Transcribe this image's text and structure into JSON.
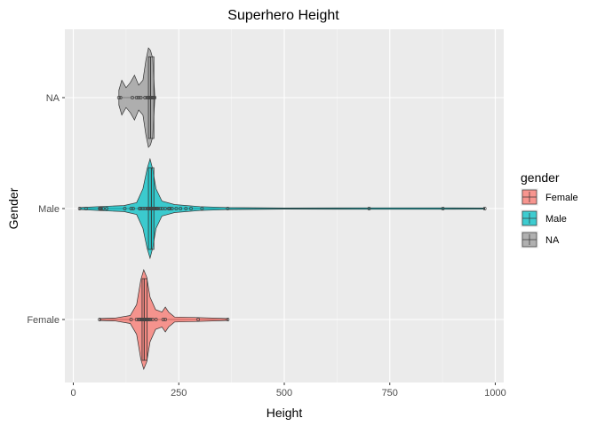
{
  "chart_data": {
    "type": "violin",
    "title": "Superhero Height",
    "xlabel": "Height",
    "ylabel": "Gender",
    "xlim": [
      -20,
      1020
    ],
    "x_ticks": [
      0,
      250,
      500,
      750,
      1000
    ],
    "categories": [
      "NA",
      "Male",
      "Female"
    ],
    "grid": true,
    "legend": {
      "title": "gender",
      "position": "right",
      "items": [
        {
          "label": "Female",
          "color": "#F8766D"
        },
        {
          "label": "Male",
          "color": "#00BFC4"
        },
        {
          "label": "NA",
          "color": "#999999"
        }
      ]
    },
    "series": [
      {
        "name": "NA",
        "color": "#999999",
        "box": {
          "min": 108,
          "q1": 178,
          "median": 183,
          "q3": 191,
          "max": 193
        },
        "violin": [
          [
            108,
            0.15
          ],
          [
            115,
            0.35
          ],
          [
            125,
            0.2
          ],
          [
            135,
            0.3
          ],
          [
            145,
            0.45
          ],
          [
            155,
            0.25
          ],
          [
            165,
            0.35
          ],
          [
            172,
            0.75
          ],
          [
            178,
            1.0
          ],
          [
            183,
            0.95
          ],
          [
            188,
            0.8
          ],
          [
            193,
            0.05
          ]
        ],
        "points": [
          108,
          112,
          140,
          150,
          155,
          160,
          170,
          175,
          178,
          180,
          183,
          185,
          188,
          191,
          193
        ]
      },
      {
        "name": "Male",
        "color": "#00BFC4",
        "box": {
          "min": 15.2,
          "q1": 178,
          "median": 185,
          "q3": 191,
          "max": 975
        },
        "violin": [
          [
            15.2,
            0.02
          ],
          [
            60,
            0.04
          ],
          [
            120,
            0.06
          ],
          [
            150,
            0.12
          ],
          [
            165,
            0.4
          ],
          [
            175,
            0.8
          ],
          [
            182,
            1.0
          ],
          [
            188,
            0.8
          ],
          [
            196,
            0.4
          ],
          [
            210,
            0.15
          ],
          [
            240,
            0.08
          ],
          [
            300,
            0.04
          ],
          [
            370,
            0.02
          ],
          [
            500,
            0.01
          ],
          [
            700,
            0.015
          ],
          [
            880,
            0.015
          ],
          [
            975,
            0.01
          ]
        ],
        "points": [
          15.2,
          30,
          62.5,
          64,
          66,
          71,
          79,
          122,
          137,
          142,
          157,
          160,
          165,
          170,
          175,
          178,
          180,
          183,
          185,
          188,
          191,
          193,
          196,
          198,
          201,
          206,
          211,
          218,
          226,
          229,
          234,
          244,
          254,
          267,
          279,
          305,
          366,
          701,
          876,
          975
        ]
      },
      {
        "name": "Female",
        "color": "#F8766D",
        "box": {
          "min": 62.5,
          "q1": 163,
          "median": 168,
          "q3": 175,
          "max": 366
        },
        "violin": [
          [
            62.5,
            0.02
          ],
          [
            100,
            0.03
          ],
          [
            135,
            0.08
          ],
          [
            150,
            0.3
          ],
          [
            160,
            0.8
          ],
          [
            167,
            1.0
          ],
          [
            174,
            0.85
          ],
          [
            182,
            0.45
          ],
          [
            195,
            0.2
          ],
          [
            210,
            0.15
          ],
          [
            218,
            0.25
          ],
          [
            226,
            0.15
          ],
          [
            240,
            0.05
          ],
          [
            296,
            0.04
          ],
          [
            366,
            0.02
          ]
        ],
        "points": [
          62.5,
          137,
          150,
          155,
          157,
          160,
          163,
          165,
          168,
          170,
          173,
          175,
          178,
          180,
          183,
          188,
          196,
          213,
          218,
          296,
          366
        ]
      }
    ]
  }
}
